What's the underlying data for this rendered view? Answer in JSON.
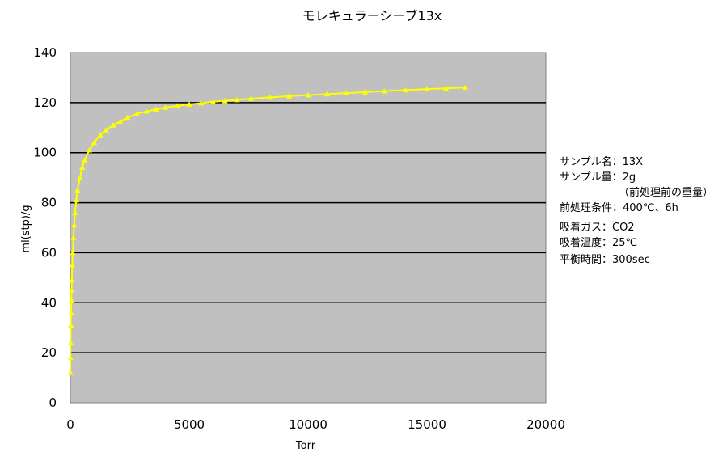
{
  "chart_data": {
    "type": "scatter",
    "title": "モレキュラーシーブ13x",
    "xlabel": "Torr",
    "ylabel": "ml(stp)/g",
    "xlim": [
      0,
      20000
    ],
    "ylim": [
      0,
      140
    ],
    "x_ticks": [
      0,
      5000,
      10000,
      15000,
      20000
    ],
    "y_ticks": [
      0,
      20,
      40,
      60,
      80,
      100,
      120,
      140
    ],
    "x_tick_labels": [
      "0",
      "5000",
      "10000",
      "15000",
      "20000"
    ],
    "y_tick_labels": [
      "0",
      "20",
      "40",
      "60",
      "80",
      "100",
      "120",
      "140"
    ],
    "grid": true,
    "plot_background": "#c0c0c0",
    "series": [
      {
        "color": "#ffff00",
        "marker": "triangle",
        "line": "smooth",
        "x": [
          1,
          5,
          10,
          20,
          30,
          40,
          50,
          60,
          80,
          100,
          130,
          160,
          200,
          250,
          300,
          400,
          500,
          600,
          800,
          1000,
          1250,
          1500,
          1800,
          2100,
          2400,
          2800,
          3200,
          3600,
          4000,
          4500,
          5000,
          5500,
          6000,
          6500,
          7000,
          7600,
          8400,
          9200,
          10000,
          10800,
          11600,
          12400,
          13200,
          14100,
          15000,
          15800,
          16600
        ],
        "y": [
          12,
          18,
          24,
          31,
          36,
          41,
          45,
          49,
          55,
          60,
          66,
          71,
          76,
          81,
          85,
          90,
          94,
          97,
          101,
          104,
          107,
          109,
          111,
          112.5,
          114,
          115.5,
          116.5,
          117.3,
          118,
          118.7,
          119.3,
          119.8,
          120.3,
          120.7,
          121.1,
          121.6,
          122.1,
          122.6,
          123,
          123.4,
          123.8,
          124.2,
          124.6,
          125,
          125.4,
          125.7,
          126
        ]
      }
    ]
  },
  "info": {
    "lines": [
      "サンプル名：13X",
      "サンプル量：2g",
      "（前処理前の重量）",
      "前処理条件：400℃、6h",
      "吸着ガス：CO2",
      "吸着温度：25℃",
      "平衡時間：300sec"
    ]
  }
}
